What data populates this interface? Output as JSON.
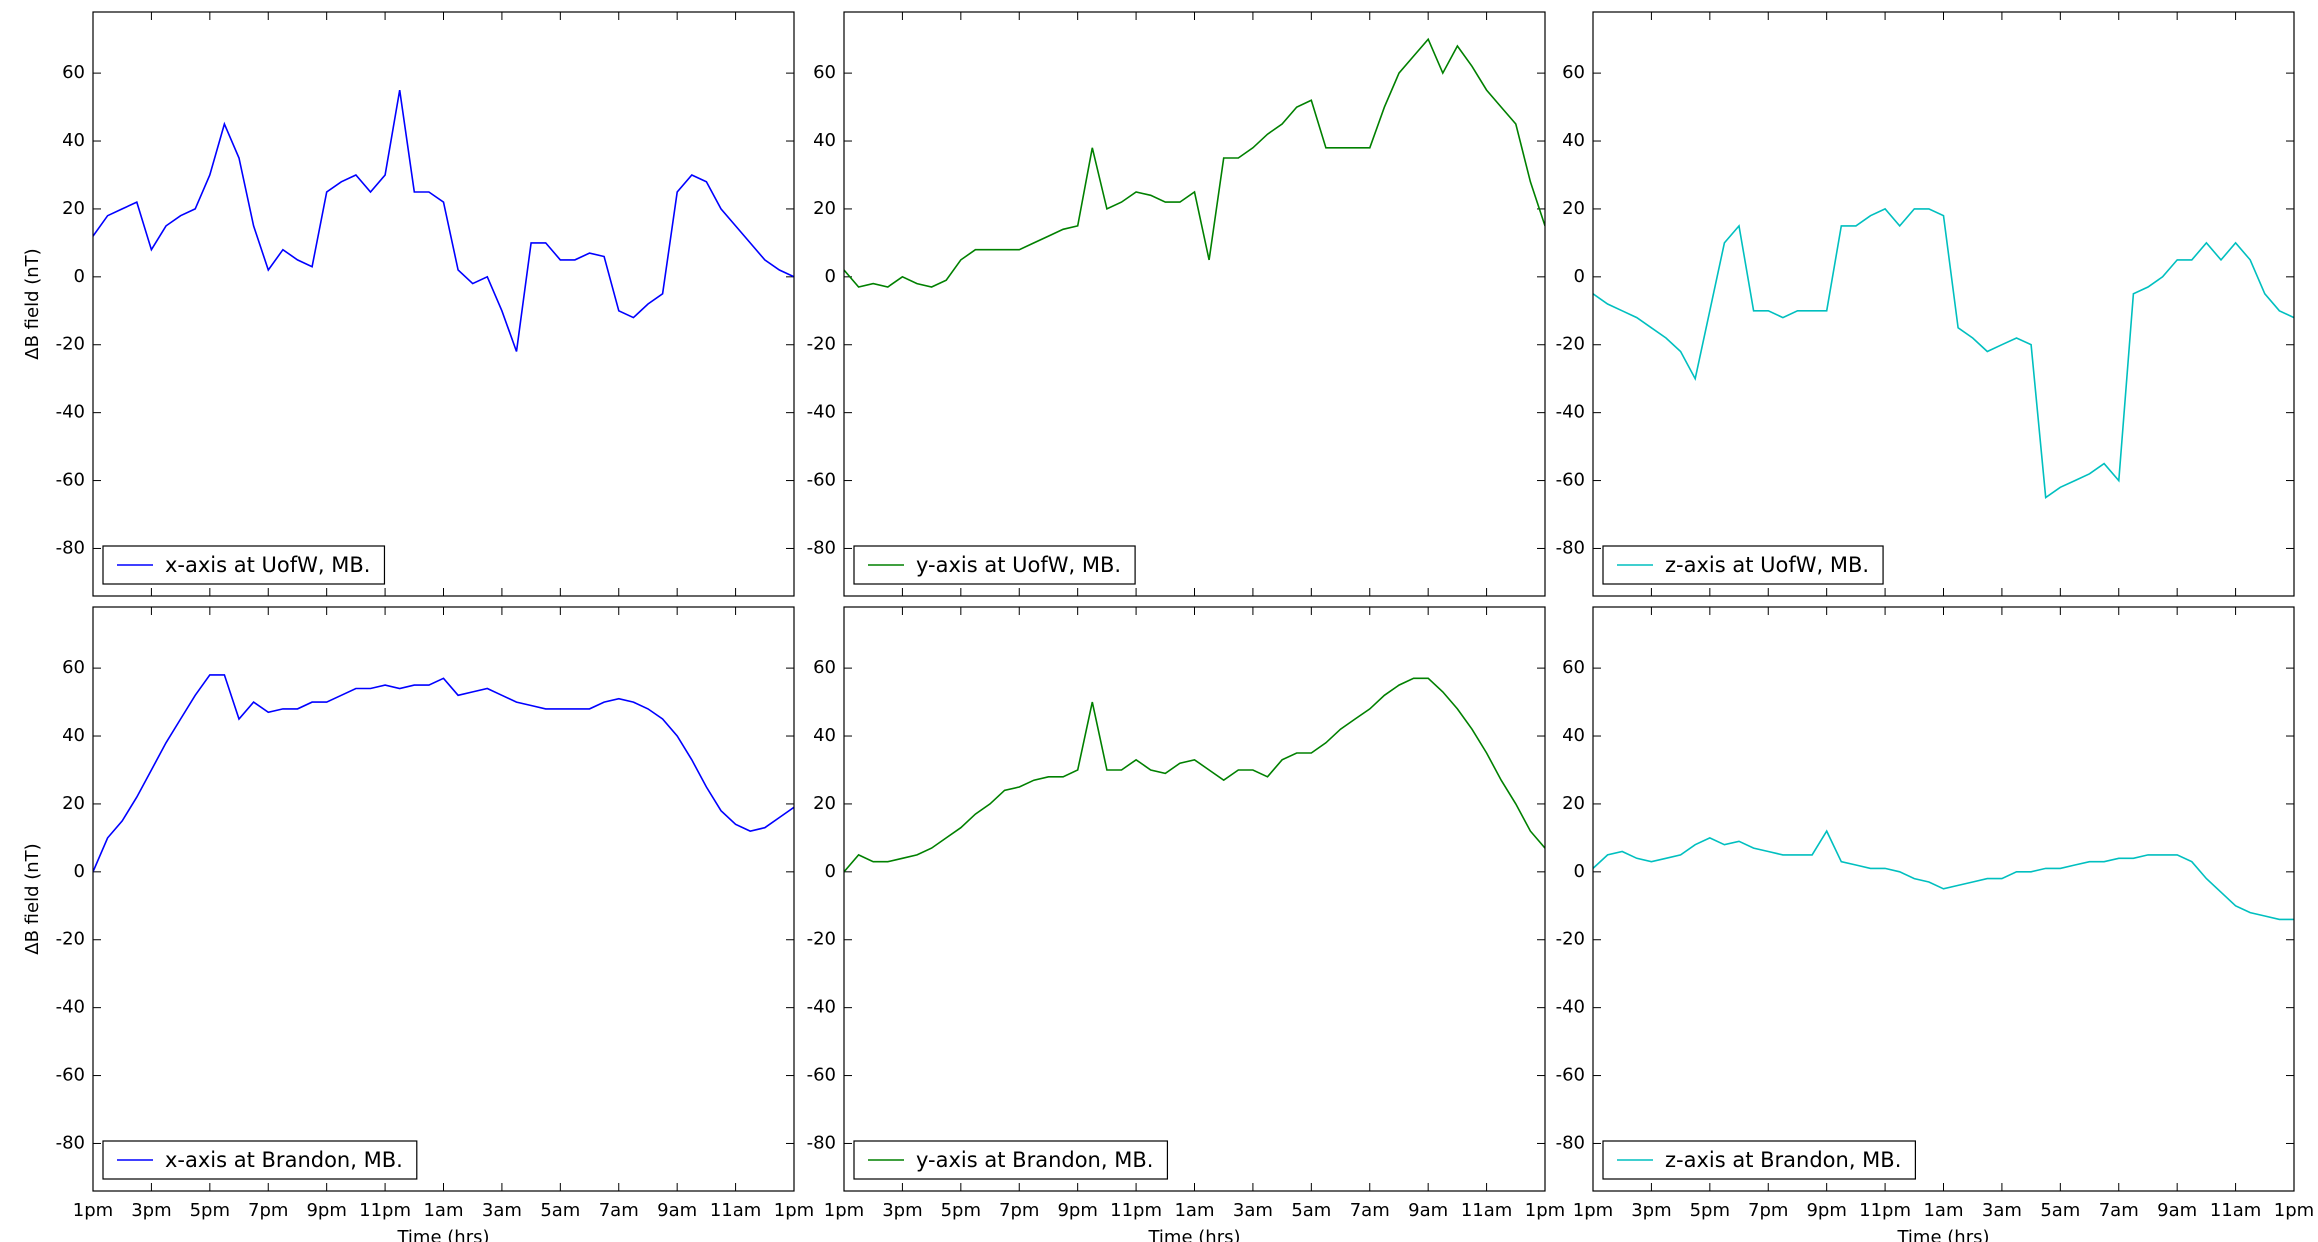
{
  "chart_data": [
    {
      "type": "line",
      "ylabel": "ΔB field (nT)",
      "legend": "lower left",
      "xlim": [
        0,
        24
      ],
      "ylim": [
        -94,
        78
      ],
      "xticks": [
        {
          "value": 0,
          "label": "1pm"
        },
        {
          "value": 2,
          "label": "3pm"
        },
        {
          "value": 4,
          "label": "5pm"
        },
        {
          "value": 6,
          "label": "7pm"
        },
        {
          "value": 8,
          "label": "9pm"
        },
        {
          "value": 10,
          "label": "11pm"
        },
        {
          "value": 12,
          "label": "1am"
        },
        {
          "value": 14,
          "label": "3am"
        },
        {
          "value": 16,
          "label": "5am"
        },
        {
          "value": 18,
          "label": "7am"
        },
        {
          "value": 20,
          "label": "9am"
        },
        {
          "value": 22,
          "label": "11am"
        },
        {
          "value": 24,
          "label": "1pm"
        }
      ],
      "yticks": [
        -80,
        -60,
        -40,
        -20,
        0,
        20,
        40,
        60
      ],
      "x": [
        0,
        0.5,
        1,
        1.5,
        2,
        2.5,
        3,
        3.5,
        4,
        4.5,
        5,
        5.5,
        6,
        6.5,
        7,
        7.5,
        8,
        8.5,
        9,
        9.5,
        10,
        10.5,
        11,
        11.5,
        12,
        12.5,
        13,
        13.5,
        14,
        14.5,
        15,
        15.5,
        16,
        16.5,
        17,
        17.5,
        18,
        18.5,
        19,
        19.5,
        20,
        20.5,
        21,
        21.5,
        22,
        22.5,
        23,
        23.5,
        24
      ],
      "series": [
        {
          "name": "x-axis at UofW, MB.",
          "color": "#0000ff",
          "values": [
            12,
            18,
            20,
            22,
            8,
            15,
            18,
            20,
            30,
            45,
            35,
            15,
            2,
            8,
            5,
            3,
            25,
            28,
            30,
            25,
            30,
            55,
            25,
            25,
            22,
            2,
            -2,
            0,
            -10,
            -22,
            10,
            10,
            5,
            5,
            7,
            6,
            -10,
            -12,
            -8,
            -5,
            25,
            30,
            28,
            20,
            15,
            10,
            5,
            2,
            0
          ]
        }
      ]
    },
    {
      "type": "line",
      "legend": "lower left",
      "xlim": [
        0,
        24
      ],
      "ylim": [
        -94,
        78
      ],
      "xticks": [
        {
          "value": 0,
          "label": "1pm"
        },
        {
          "value": 2,
          "label": "3pm"
        },
        {
          "value": 4,
          "label": "5pm"
        },
        {
          "value": 6,
          "label": "7pm"
        },
        {
          "value": 8,
          "label": "9pm"
        },
        {
          "value": 10,
          "label": "11pm"
        },
        {
          "value": 12,
          "label": "1am"
        },
        {
          "value": 14,
          "label": "3am"
        },
        {
          "value": 16,
          "label": "5am"
        },
        {
          "value": 18,
          "label": "7am"
        },
        {
          "value": 20,
          "label": "9am"
        },
        {
          "value": 22,
          "label": "11am"
        },
        {
          "value": 24,
          "label": "1pm"
        }
      ],
      "yticks": [
        -80,
        -60,
        -40,
        -20,
        0,
        20,
        40,
        60
      ],
      "x": [
        0,
        0.5,
        1,
        1.5,
        2,
        2.5,
        3,
        3.5,
        4,
        4.5,
        5,
        5.5,
        6,
        6.5,
        7,
        7.5,
        8,
        8.5,
        9,
        9.5,
        10,
        10.5,
        11,
        11.5,
        12,
        12.5,
        13,
        13.5,
        14,
        14.5,
        15,
        15.5,
        16,
        16.5,
        17,
        17.5,
        18,
        18.5,
        19,
        19.5,
        20,
        20.5,
        21,
        21.5,
        22,
        22.5,
        23,
        23.5,
        24
      ],
      "series": [
        {
          "name": "y-axis at UofW, MB.",
          "color": "#008000",
          "values": [
            2,
            -3,
            -2,
            -3,
            0,
            -2,
            -3,
            -1,
            5,
            8,
            8,
            8,
            8,
            10,
            12,
            14,
            15,
            38,
            20,
            22,
            25,
            24,
            22,
            22,
            25,
            5,
            35,
            35,
            38,
            42,
            45,
            50,
            52,
            38,
            38,
            38,
            38,
            50,
            60,
            65,
            70,
            60,
            68,
            62,
            55,
            50,
            45,
            28,
            15
          ]
        }
      ]
    },
    {
      "type": "line",
      "legend": "lower left",
      "xlim": [
        0,
        24
      ],
      "ylim": [
        -94,
        78
      ],
      "xticks": [
        {
          "value": 0,
          "label": "1pm"
        },
        {
          "value": 2,
          "label": "3pm"
        },
        {
          "value": 4,
          "label": "5pm"
        },
        {
          "value": 6,
          "label": "7pm"
        },
        {
          "value": 8,
          "label": "9pm"
        },
        {
          "value": 10,
          "label": "11pm"
        },
        {
          "value": 12,
          "label": "1am"
        },
        {
          "value": 14,
          "label": "3am"
        },
        {
          "value": 16,
          "label": "5am"
        },
        {
          "value": 18,
          "label": "7am"
        },
        {
          "value": 20,
          "label": "9am"
        },
        {
          "value": 22,
          "label": "11am"
        },
        {
          "value": 24,
          "label": "1pm"
        }
      ],
      "yticks": [
        -80,
        -60,
        -40,
        -20,
        0,
        20,
        40,
        60
      ],
      "x": [
        0,
        0.5,
        1,
        1.5,
        2,
        2.5,
        3,
        3.5,
        4,
        4.5,
        5,
        5.5,
        6,
        6.5,
        7,
        7.5,
        8,
        8.5,
        9,
        9.5,
        10,
        10.5,
        11,
        11.5,
        12,
        12.5,
        13,
        13.5,
        14,
        14.5,
        15,
        15.5,
        16,
        16.5,
        17,
        17.5,
        18,
        18.5,
        19,
        19.5,
        20,
        20.5,
        21,
        21.5,
        22,
        22.5,
        23,
        23.5,
        24
      ],
      "series": [
        {
          "name": "z-axis at UofW, MB.",
          "color": "#00bfbf",
          "values": [
            -5,
            -8,
            -10,
            -12,
            -15,
            -18,
            -22,
            -30,
            -10,
            10,
            15,
            -10,
            -10,
            -12,
            -10,
            -10,
            -10,
            15,
            15,
            18,
            20,
            15,
            20,
            20,
            18,
            -15,
            -18,
            -22,
            -20,
            -18,
            -20,
            -65,
            -62,
            -60,
            -58,
            -55,
            -60,
            -5,
            -3,
            0,
            5,
            5,
            10,
            5,
            10,
            5,
            -5,
            -10,
            -12
          ]
        }
      ]
    },
    {
      "type": "line",
      "ylabel": "ΔB field (nT)",
      "xlabel": "Time (hrs)",
      "legend": "lower left",
      "xlim": [
        0,
        24
      ],
      "ylim": [
        -94,
        78
      ],
      "xticks": [
        {
          "value": 0,
          "label": "1pm"
        },
        {
          "value": 2,
          "label": "3pm"
        },
        {
          "value": 4,
          "label": "5pm"
        },
        {
          "value": 6,
          "label": "7pm"
        },
        {
          "value": 8,
          "label": "9pm"
        },
        {
          "value": 10,
          "label": "11pm"
        },
        {
          "value": 12,
          "label": "1am"
        },
        {
          "value": 14,
          "label": "3am"
        },
        {
          "value": 16,
          "label": "5am"
        },
        {
          "value": 18,
          "label": "7am"
        },
        {
          "value": 20,
          "label": "9am"
        },
        {
          "value": 22,
          "label": "11am"
        },
        {
          "value": 24,
          "label": "1pm"
        }
      ],
      "yticks": [
        -80,
        -60,
        -40,
        -20,
        0,
        20,
        40,
        60
      ],
      "x": [
        0,
        0.5,
        1,
        1.5,
        2,
        2.5,
        3,
        3.5,
        4,
        4.5,
        5,
        5.5,
        6,
        6.5,
        7,
        7.5,
        8,
        8.5,
        9,
        9.5,
        10,
        10.5,
        11,
        11.5,
        12,
        12.5,
        13,
        13.5,
        14,
        14.5,
        15,
        15.5,
        16,
        16.5,
        17,
        17.5,
        18,
        18.5,
        19,
        19.5,
        20,
        20.5,
        21,
        21.5,
        22,
        22.5,
        23,
        23.5,
        24
      ],
      "series": [
        {
          "name": "x-axis at Brandon, MB.",
          "color": "#0000ff",
          "values": [
            0,
            10,
            15,
            22,
            30,
            38,
            45,
            52,
            58,
            58,
            45,
            50,
            47,
            48,
            48,
            50,
            50,
            52,
            54,
            54,
            55,
            54,
            55,
            55,
            57,
            52,
            53,
            54,
            52,
            50,
            49,
            48,
            48,
            48,
            48,
            50,
            51,
            50,
            48,
            45,
            40,
            33,
            25,
            18,
            14,
            12,
            13,
            16,
            19
          ]
        }
      ]
    },
    {
      "type": "line",
      "xlabel": "Time (hrs)",
      "legend": "lower left",
      "xlim": [
        0,
        24
      ],
      "ylim": [
        -94,
        78
      ],
      "xticks": [
        {
          "value": 0,
          "label": "1pm"
        },
        {
          "value": 2,
          "label": "3pm"
        },
        {
          "value": 4,
          "label": "5pm"
        },
        {
          "value": 6,
          "label": "7pm"
        },
        {
          "value": 8,
          "label": "9pm"
        },
        {
          "value": 10,
          "label": "11pm"
        },
        {
          "value": 12,
          "label": "1am"
        },
        {
          "value": 14,
          "label": "3am"
        },
        {
          "value": 16,
          "label": "5am"
        },
        {
          "value": 18,
          "label": "7am"
        },
        {
          "value": 20,
          "label": "9am"
        },
        {
          "value": 22,
          "label": "11am"
        },
        {
          "value": 24,
          "label": "1pm"
        }
      ],
      "yticks": [
        -80,
        -60,
        -40,
        -20,
        0,
        20,
        40,
        60
      ],
      "x": [
        0,
        0.5,
        1,
        1.5,
        2,
        2.5,
        3,
        3.5,
        4,
        4.5,
        5,
        5.5,
        6,
        6.5,
        7,
        7.5,
        8,
        8.5,
        9,
        9.5,
        10,
        10.5,
        11,
        11.5,
        12,
        12.5,
        13,
        13.5,
        14,
        14.5,
        15,
        15.5,
        16,
        16.5,
        17,
        17.5,
        18,
        18.5,
        19,
        19.5,
        20,
        20.5,
        21,
        21.5,
        22,
        22.5,
        23,
        23.5,
        24
      ],
      "series": [
        {
          "name": "y-axis at Brandon, MB.",
          "color": "#008000",
          "values": [
            0,
            5,
            3,
            3,
            4,
            5,
            7,
            10,
            13,
            17,
            20,
            24,
            25,
            27,
            28,
            28,
            30,
            50,
            30,
            30,
            33,
            30,
            29,
            32,
            33,
            30,
            27,
            30,
            30,
            28,
            33,
            35,
            35,
            38,
            42,
            45,
            48,
            52,
            55,
            57,
            57,
            53,
            48,
            42,
            35,
            27,
            20,
            12,
            7
          ]
        }
      ]
    },
    {
      "type": "line",
      "xlabel": "Time (hrs)",
      "legend": "lower left",
      "xlim": [
        0,
        24
      ],
      "ylim": [
        -94,
        78
      ],
      "xticks": [
        {
          "value": 0,
          "label": "1pm"
        },
        {
          "value": 2,
          "label": "3pm"
        },
        {
          "value": 4,
          "label": "5pm"
        },
        {
          "value": 6,
          "label": "7pm"
        },
        {
          "value": 8,
          "label": "9pm"
        },
        {
          "value": 10,
          "label": "11pm"
        },
        {
          "value": 12,
          "label": "1am"
        },
        {
          "value": 14,
          "label": "3am"
        },
        {
          "value": 16,
          "label": "5am"
        },
        {
          "value": 18,
          "label": "7am"
        },
        {
          "value": 20,
          "label": "9am"
        },
        {
          "value": 22,
          "label": "11am"
        },
        {
          "value": 24,
          "label": "1pm"
        }
      ],
      "yticks": [
        -80,
        -60,
        -40,
        -20,
        0,
        20,
        40,
        60
      ],
      "x": [
        0,
        0.5,
        1,
        1.5,
        2,
        2.5,
        3,
        3.5,
        4,
        4.5,
        5,
        5.5,
        6,
        6.5,
        7,
        7.5,
        8,
        8.5,
        9,
        9.5,
        10,
        10.5,
        11,
        11.5,
        12,
        12.5,
        13,
        13.5,
        14,
        14.5,
        15,
        15.5,
        16,
        16.5,
        17,
        17.5,
        18,
        18.5,
        19,
        19.5,
        20,
        20.5,
        21,
        21.5,
        22,
        22.5,
        23,
        23.5,
        24
      ],
      "series": [
        {
          "name": "z-axis at Brandon, MB.",
          "color": "#00bfbf",
          "values": [
            1,
            5,
            6,
            4,
            3,
            4,
            5,
            8,
            10,
            8,
            9,
            7,
            6,
            5,
            5,
            5,
            12,
            3,
            2,
            1,
            1,
            0,
            -2,
            -3,
            -5,
            -4,
            -3,
            -2,
            -2,
            0,
            0,
            1,
            1,
            2,
            3,
            3,
            4,
            4,
            5,
            5,
            5,
            3,
            -2,
            -6,
            -10,
            -12,
            -13,
            -14,
            -14
          ]
        }
      ]
    }
  ]
}
